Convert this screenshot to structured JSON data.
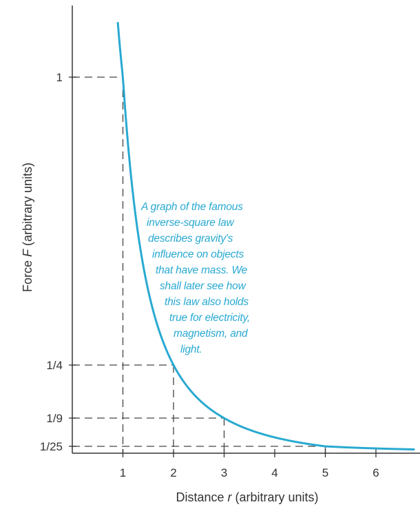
{
  "chart_data": {
    "type": "line",
    "title": "",
    "xlabel_prefix": "Distance ",
    "xlabel_var": "r",
    "xlabel_suffix": " (arbitrary units)",
    "ylabel_prefix": "Force ",
    "ylabel_var": "F",
    "ylabel_suffix": " (arbitrary units)",
    "x_ticks": [
      {
        "value": 1,
        "label": "1"
      },
      {
        "value": 2,
        "label": "2"
      },
      {
        "value": 3,
        "label": "3"
      },
      {
        "value": 4,
        "label": "4"
      },
      {
        "value": 5,
        "label": "5"
      },
      {
        "value": 6,
        "label": "6"
      }
    ],
    "y_ticks": [
      {
        "value": 1,
        "label": "1"
      },
      {
        "value": 0.25,
        "label": "1/4"
      },
      {
        "value": 0.1111,
        "label": "1/9"
      },
      {
        "value": 0.04,
        "label": "1/25"
      }
    ],
    "xlim": [
      0,
      6.9
    ],
    "ylim": [
      0,
      1.31
    ],
    "series": [
      {
        "function": "F = 1/r^2",
        "color": "#29a9d1",
        "x": [
          0.9,
          1,
          1.25,
          1.5,
          2,
          2.5,
          3,
          3.5,
          4,
          4.5,
          5,
          5.5,
          6,
          6.5,
          6.75
        ],
        "y": [
          1.2346,
          1,
          0.64,
          0.4444,
          0.25,
          0.16,
          0.1111,
          0.0816,
          0.0625,
          0.0494,
          0.04,
          0.0331,
          0.0278,
          0.0237,
          0.0219
        ]
      }
    ],
    "guide_points": [
      {
        "x": 1,
        "y": 1
      },
      {
        "x": 2,
        "y": 0.25
      },
      {
        "x": 3,
        "y": 0.1111
      },
      {
        "x": 5,
        "y": 0.04
      }
    ],
    "annotation": {
      "color": "#29a9d1",
      "lines": [
        "A graph of the famous",
        "inverse-square law",
        "describes gravity's",
        "influence on objects",
        "that have mass. We",
        "shall later see how",
        "this law also holds",
        "true for electricity,",
        "magnetism, and",
        "light."
      ]
    }
  }
}
